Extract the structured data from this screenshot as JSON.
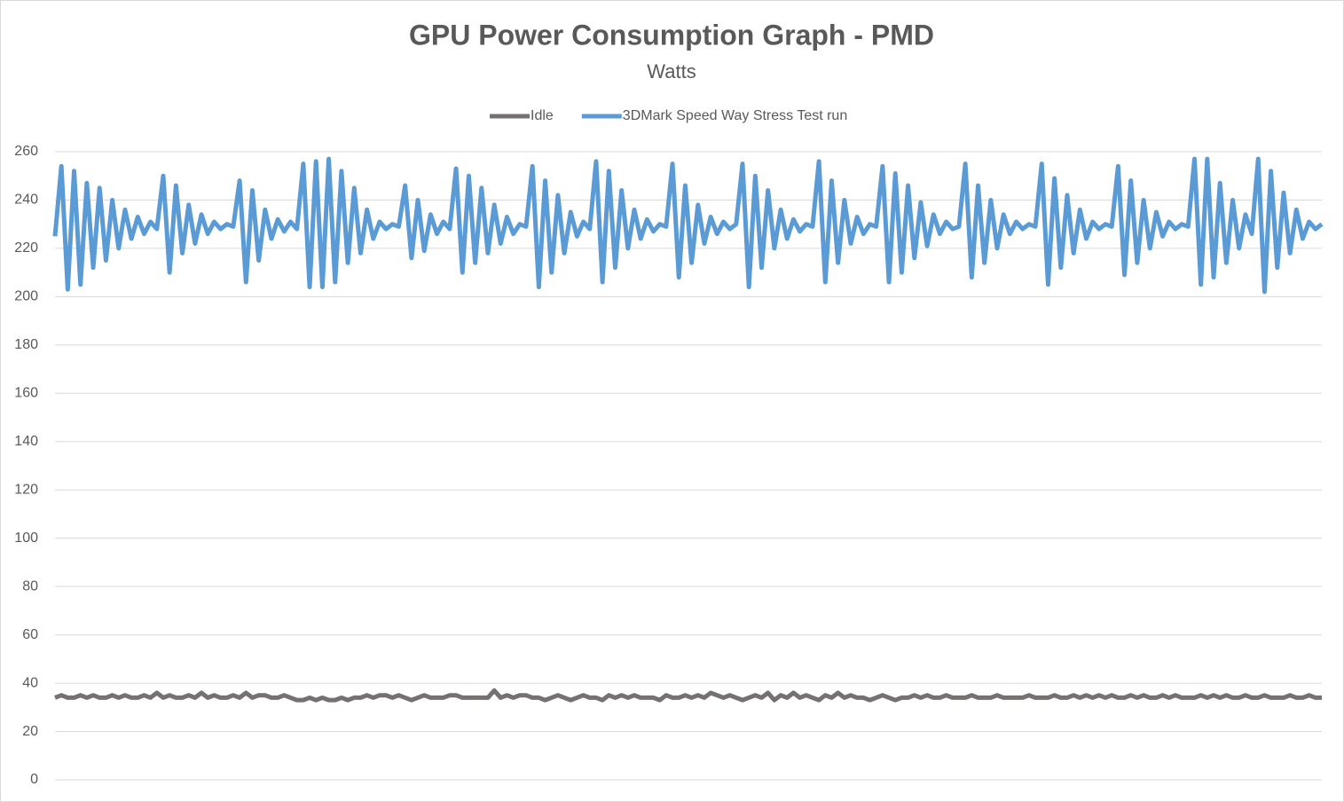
{
  "chart_data": {
    "type": "line",
    "title": "GPU Power Consumption Graph - PMD",
    "subtitle": "Watts",
    "ylim": [
      0,
      260
    ],
    "yticks": [
      0,
      20,
      40,
      60,
      80,
      100,
      120,
      140,
      160,
      180,
      200,
      220,
      240,
      260
    ],
    "grid": true,
    "legend": "top",
    "series": [
      {
        "name": "Idle",
        "color": "#767171",
        "values": [
          34,
          35,
          34,
          34,
          35,
          34,
          35,
          34,
          34,
          35,
          34,
          35,
          34,
          34,
          35,
          34,
          36,
          34,
          35,
          34,
          34,
          35,
          34,
          36,
          34,
          35,
          34,
          34,
          35,
          34,
          36,
          34,
          35,
          35,
          34,
          34,
          35,
          34,
          33,
          33,
          34,
          33,
          34,
          33,
          33,
          34,
          33,
          34,
          34,
          35,
          34,
          35,
          35,
          34,
          35,
          34,
          33,
          34,
          35,
          34,
          34,
          34,
          35,
          35,
          34,
          34,
          34,
          34,
          34,
          37,
          34,
          35,
          34,
          35,
          35,
          34,
          34,
          33,
          34,
          35,
          34,
          33,
          34,
          35,
          34,
          34,
          33,
          35,
          34,
          35,
          34,
          35,
          34,
          34,
          34,
          33,
          35,
          34,
          34,
          35,
          34,
          35,
          34,
          36,
          35,
          34,
          35,
          34,
          33,
          34,
          35,
          34,
          36,
          33,
          35,
          34,
          36,
          34,
          35,
          34,
          33,
          35,
          34,
          36,
          34,
          35,
          34,
          34,
          33,
          34,
          35,
          34,
          33,
          34,
          34,
          35,
          34,
          35,
          34,
          34,
          35,
          34,
          34,
          34,
          35,
          34,
          34,
          34,
          35,
          34,
          34,
          34,
          34,
          35,
          34,
          34,
          34,
          35,
          34,
          34,
          35,
          34,
          35,
          34,
          35,
          34,
          35,
          34,
          34,
          35,
          34,
          35,
          34,
          34,
          35,
          34,
          35,
          34,
          34,
          34,
          35,
          34,
          35,
          34,
          35,
          34,
          34,
          35,
          34,
          34,
          35,
          34,
          34,
          34,
          35,
          34,
          34,
          35,
          34,
          34
        ]
      },
      {
        "name": "3DMark Speed Way Stress Test run",
        "color": "#5b9bd5",
        "values": [
          225,
          254,
          203,
          252,
          205,
          247,
          212,
          245,
          215,
          240,
          220,
          236,
          224,
          233,
          226,
          231,
          228,
          250,
          210,
          246,
          218,
          238,
          222,
          234,
          226,
          231,
          228,
          230,
          229,
          248,
          206,
          244,
          215,
          236,
          224,
          232,
          227,
          231,
          228,
          255,
          204,
          256,
          204,
          257,
          206,
          252,
          214,
          245,
          218,
          236,
          224,
          231,
          228,
          230,
          229,
          246,
          216,
          240,
          219,
          234,
          226,
          231,
          228,
          253,
          210,
          250,
          214,
          245,
          218,
          238,
          222,
          233,
          226,
          230,
          229,
          254,
          204,
          248,
          210,
          242,
          218,
          235,
          225,
          231,
          228,
          256,
          206,
          252,
          212,
          244,
          220,
          236,
          224,
          232,
          227,
          230,
          229,
          255,
          208,
          246,
          214,
          238,
          222,
          233,
          226,
          231,
          228,
          230,
          255,
          204,
          250,
          212,
          244,
          220,
          236,
          224,
          232,
          227,
          230,
          229,
          256,
          206,
          248,
          214,
          240,
          222,
          233,
          226,
          230,
          229,
          254,
          206,
          251,
          210,
          246,
          216,
          239,
          221,
          234,
          226,
          231,
          228,
          229,
          255,
          208,
          246,
          214,
          240,
          220,
          234,
          226,
          231,
          228,
          230,
          229,
          255,
          205,
          249,
          212,
          242,
          218,
          236,
          224,
          231,
          228,
          230,
          229,
          254,
          209,
          248,
          214,
          240,
          220,
          235,
          225,
          231,
          228,
          230,
          229,
          257,
          205,
          257,
          208,
          247,
          214,
          240,
          220,
          234,
          226,
          257,
          202,
          252,
          212,
          243,
          218,
          236,
          224,
          231,
          228,
          230
        ]
      }
    ]
  }
}
